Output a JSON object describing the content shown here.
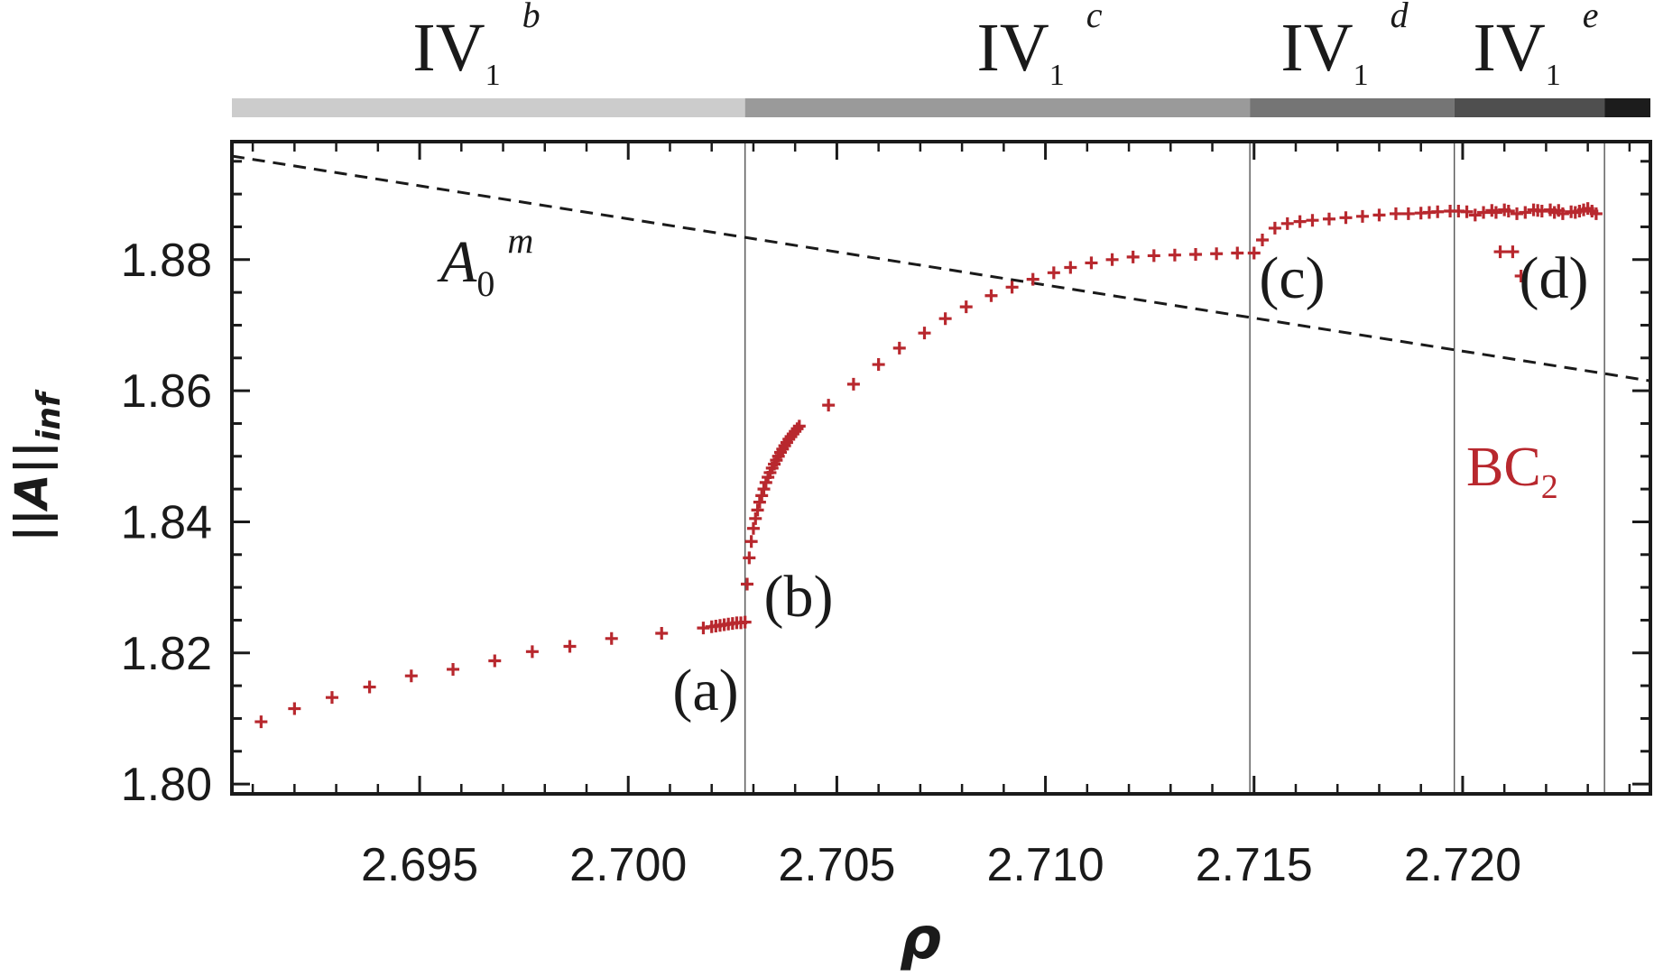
{
  "chart_data": {
    "type": "scatter",
    "xlabel": "ρ",
    "ylabel": "||A||inf",
    "ylabel_main": "||A||",
    "ylabel_sub": "inf",
    "xlim": [
      2.6905,
      2.7245
    ],
    "ylim": [
      1.7985,
      1.898
    ],
    "x_ticks": [
      2.695,
      2.7,
      2.705,
      2.71,
      2.715,
      2.72
    ],
    "x_tick_labels": [
      "2.695",
      "2.700",
      "2.705",
      "2.710",
      "2.715",
      "2.720"
    ],
    "y_ticks": [
      1.8,
      1.82,
      1.84,
      1.86,
      1.88
    ],
    "y_tick_labels": [
      "1.80",
      "1.82",
      "1.84",
      "1.86",
      "1.88"
    ],
    "grid": false,
    "regime_boundaries": [
      2.7028,
      2.7149,
      2.7198,
      2.7234
    ],
    "regime_bar": [
      {
        "x0": 2.6905,
        "x1": 2.7028,
        "color": "#cccccc",
        "label_main": "IV",
        "label_sub": "1",
        "label_sup": "b"
      },
      {
        "x0": 2.7028,
        "x1": 2.7149,
        "color": "#9a9a9a",
        "label_main": "IV",
        "label_sub": "1",
        "label_sup": "c"
      },
      {
        "x0": 2.7149,
        "x1": 2.7198,
        "color": "#757575",
        "label_main": "IV",
        "label_sub": "1",
        "label_sup": "d"
      },
      {
        "x0": 2.7198,
        "x1": 2.7234,
        "color": "#4f4f4f",
        "label_main": "IV",
        "label_sub": "1",
        "label_sup": "e"
      },
      {
        "x0": 2.7234,
        "x1": 2.7245,
        "color": "#1c1c1c"
      }
    ],
    "series": [
      {
        "name": "BC2",
        "name_main": "BC",
        "name_sub": "2",
        "color": "#b8282e",
        "marker": "+",
        "x": [
          2.6912,
          2.692,
          2.6929,
          2.6938,
          2.6948,
          2.6958,
          2.6968,
          2.6977,
          2.6986,
          2.6996,
          2.7008,
          2.7018,
          2.702,
          2.7021,
          2.7022,
          2.7023,
          2.7024,
          2.7025,
          2.7026,
          2.7027,
          2.7028,
          2.70285,
          2.7029,
          2.70295,
          2.703,
          2.70305,
          2.7031,
          2.70315,
          2.7032,
          2.70325,
          2.7033,
          2.70335,
          2.7034,
          2.70345,
          2.7035,
          2.70355,
          2.7036,
          2.70365,
          2.7037,
          2.70375,
          2.7038,
          2.70385,
          2.7039,
          2.70395,
          2.704,
          2.70405,
          2.7041,
          2.7048,
          2.7054,
          2.706,
          2.7065,
          2.7071,
          2.7076,
          2.7081,
          2.7087,
          2.7092,
          2.7097,
          2.7102,
          2.7106,
          2.7111,
          2.7116,
          2.7121,
          2.7126,
          2.7131,
          2.7136,
          2.7141,
          2.7146,
          2.715,
          2.7152,
          2.7155,
          2.7158,
          2.7161,
          2.7164,
          2.7168,
          2.7172,
          2.7176,
          2.718,
          2.7184,
          2.7187,
          2.719,
          2.7192,
          2.7194,
          2.7197,
          2.7199,
          2.7201,
          2.7203,
          2.7205,
          2.7207,
          2.7208,
          2.721,
          2.7211,
          2.7213,
          2.7215,
          2.7217,
          2.7218,
          2.7219,
          2.7221,
          2.7222,
          2.7223,
          2.7224,
          2.7226,
          2.7227,
          2.7228,
          2.7229,
          2.723,
          2.7231,
          2.7232,
          2.7209,
          2.7212,
          2.7214
        ],
        "y": [
          1.8095,
          1.8115,
          1.8132,
          1.8148,
          1.8165,
          1.8175,
          1.8188,
          1.8202,
          1.821,
          1.8222,
          1.823,
          1.8238,
          1.824,
          1.8241,
          1.8242,
          1.8243,
          1.8244,
          1.8245,
          1.8246,
          1.8246,
          1.8247,
          1.8305,
          1.8345,
          1.837,
          1.839,
          1.8405,
          1.8418,
          1.843,
          1.844,
          1.845,
          1.846,
          1.8468,
          1.8475,
          1.8482,
          1.8488,
          1.8494,
          1.85,
          1.8506,
          1.8511,
          1.8516,
          1.8521,
          1.8526,
          1.853,
          1.8534,
          1.8538,
          1.8542,
          1.8546,
          1.8578,
          1.861,
          1.864,
          1.8665,
          1.8688,
          1.871,
          1.8728,
          1.8745,
          1.8758,
          1.877,
          1.878,
          1.8788,
          1.8795,
          1.88,
          1.8804,
          1.8806,
          1.8807,
          1.8808,
          1.8809,
          1.881,
          1.881,
          1.883,
          1.8848,
          1.8855,
          1.8858,
          1.886,
          1.8862,
          1.8864,
          1.8866,
          1.8868,
          1.887,
          1.887,
          1.8871,
          1.8872,
          1.8873,
          1.8874,
          1.8874,
          1.8873,
          1.8868,
          1.8872,
          1.8875,
          1.8872,
          1.8876,
          1.8874,
          1.887,
          1.8872,
          1.8876,
          1.8875,
          1.8874,
          1.8876,
          1.8872,
          1.8875,
          1.887,
          1.8873,
          1.8872,
          1.8874,
          1.8876,
          1.8878,
          1.8874,
          1.887,
          1.8812,
          1.8812,
          1.8775
        ]
      }
    ],
    "reference_line": {
      "name": "A0m",
      "name_main": "A",
      "name_sub": "0",
      "name_sup": "m",
      "style": "dashed",
      "color": "#1a1a1a",
      "x": [
        2.6905,
        2.7245
      ],
      "y": [
        1.8958,
        1.8615
      ]
    },
    "annotations": [
      {
        "text": "(a)",
        "x": 2.7018,
        "y": 1.8186
      },
      {
        "text": "(b)",
        "x": 2.7034,
        "y": 1.8305
      },
      {
        "text": "(c)",
        "x": 2.7157,
        "y": 1.8795
      },
      {
        "text": "(d)",
        "x": 2.7218,
        "y": 1.8782
      }
    ]
  }
}
